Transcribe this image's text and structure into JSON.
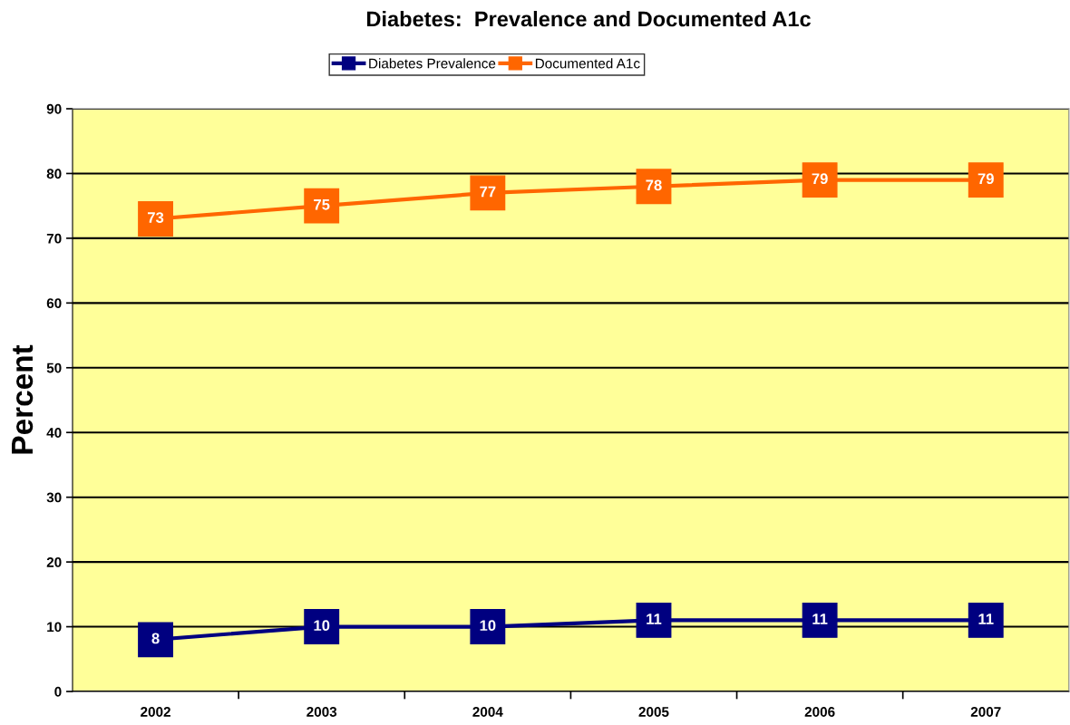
{
  "chart_data": {
    "type": "line",
    "title": "Diabetes:  Prevalence and Documented A1c",
    "ylabel": "Percent",
    "categories": [
      "2002",
      "2003",
      "2004",
      "2005",
      "2006",
      "2007"
    ],
    "series": [
      {
        "name": "Diabetes Prevalence",
        "color": "#000080",
        "values": [
          8,
          10,
          10,
          11,
          11,
          11
        ]
      },
      {
        "name": "Documented A1c",
        "color": "#ff6600",
        "values": [
          73,
          75,
          77,
          78,
          79,
          79
        ]
      }
    ],
    "ylim": [
      0,
      90
    ],
    "yticks": [
      0,
      10,
      20,
      30,
      40,
      50,
      60,
      70,
      80,
      90
    ],
    "grid": "y",
    "legend": "top",
    "marker": "square",
    "line_style": "solid",
    "data_labels": true
  }
}
